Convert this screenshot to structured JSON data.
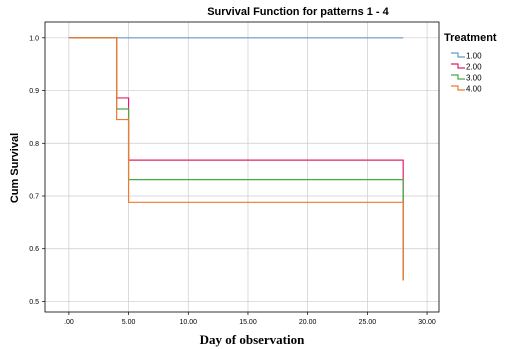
{
  "chart_data": {
    "type": "line",
    "step": true,
    "title": "Survival Function for patterns 1 - 4",
    "xlabel": "Day of observation",
    "ylabel": "Cum Survival",
    "xlim": [
      -2,
      31
    ],
    "ylim": [
      0.48,
      1.03
    ],
    "xticks": [
      0,
      5,
      10,
      15,
      20,
      25,
      30
    ],
    "xtick_labels": [
      ".00",
      "5.00",
      "10.00",
      "15.00",
      "20.00",
      "25.00",
      "30.00"
    ],
    "yticks": [
      0.5,
      0.6,
      0.7,
      0.8,
      0.9,
      1.0
    ],
    "ytick_labels": [
      "0.5",
      "0.6",
      "0.7",
      "0.8",
      "0.9",
      "1.0"
    ],
    "grid": true,
    "legend": {
      "title": "Treatment",
      "placement": "right"
    },
    "series": [
      {
        "name": "1.00",
        "color": "#6699cc",
        "x": [
          0,
          28
        ],
        "y": [
          1.0,
          1.0
        ]
      },
      {
        "name": "2.00",
        "color": "#e0206e",
        "x": [
          0,
          4,
          5,
          28,
          28
        ],
        "y": [
          1.0,
          0.886,
          0.768,
          0.768,
          0.54
        ]
      },
      {
        "name": "3.00",
        "color": "#44aa44",
        "x": [
          0,
          4,
          5,
          28,
          28
        ],
        "y": [
          1.0,
          0.865,
          0.731,
          0.731,
          0.54
        ]
      },
      {
        "name": "4.00",
        "color": "#f07830",
        "x": [
          0,
          4,
          5,
          28,
          28
        ],
        "y": [
          1.0,
          0.845,
          0.688,
          0.688,
          0.54
        ]
      }
    ]
  }
}
